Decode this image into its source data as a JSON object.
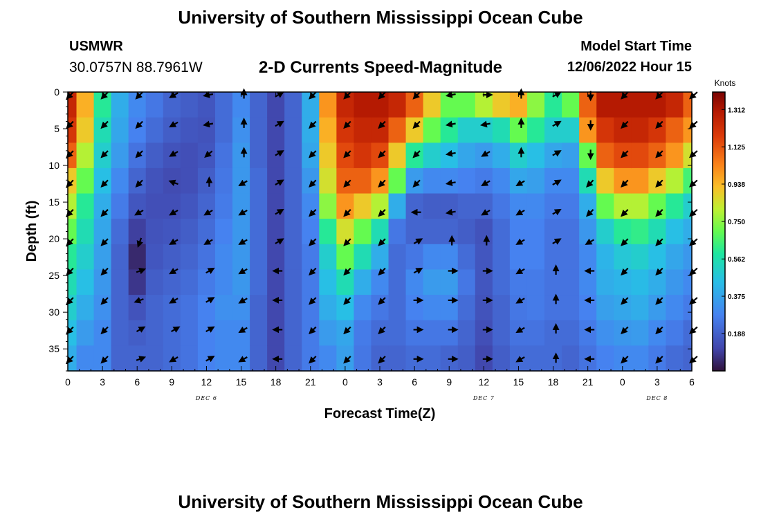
{
  "header": {
    "title": "University of Southern Mississippi Ocean Cube",
    "station": "USMWR",
    "coords": "30.0757N  88.7961W",
    "subtitle": "2-D Currents Speed-Magnitude",
    "start_label": "Model Start Time",
    "start_value": "12/06/2022 Hour 15",
    "footer_title": "University of Southern Mississippi Ocean Cube"
  },
  "chart_data": {
    "type": "heatmap",
    "title": "2-D Currents Speed-Magnitude",
    "xlabel": "Forecast Time(Z)",
    "ylabel": "Depth (ft)",
    "x_ticks": [
      "0",
      "3",
      "6",
      "9",
      "12",
      "15",
      "18",
      "21",
      "0",
      "3",
      "6",
      "9",
      "12",
      "15",
      "18",
      "21",
      "0",
      "3",
      "6"
    ],
    "y_ticks": [
      "0",
      "5",
      "10",
      "15",
      "20",
      "25",
      "30",
      "35"
    ],
    "y_range": [
      0,
      38
    ],
    "day_labels": [
      {
        "label": "DEC 6",
        "hour": 12
      },
      {
        "label": "DEC 7",
        "hour": 36
      },
      {
        "label": "DEC 8",
        "hour": 51
      }
    ],
    "colorbar": {
      "unit": "Knots",
      "ticks": [
        "1.312",
        "1.125",
        "0.938",
        "0.750",
        "0.562",
        "0.375",
        "0.188"
      ],
      "range": [
        0,
        1.4
      ]
    },
    "columns": [
      {
        "hour": 0,
        "speed": [
          1.25,
          1.2,
          1.1,
          0.9,
          0.8,
          0.7,
          0.6,
          0.55,
          0.5,
          0.45,
          0.4
        ]
      },
      {
        "hour": 1.5,
        "speed": [
          0.95,
          0.9,
          0.8,
          0.7,
          0.6,
          0.55,
          0.5,
          0.45,
          0.4,
          0.35,
          0.3
        ]
      },
      {
        "hour": 3,
        "speed": [
          0.6,
          0.55,
          0.5,
          0.45,
          0.4,
          0.38,
          0.36,
          0.34,
          0.32,
          0.3,
          0.3
        ]
      },
      {
        "hour": 4.5,
        "speed": [
          0.4,
          0.38,
          0.35,
          0.3,
          0.26,
          0.22,
          0.2,
          0.2,
          0.2,
          0.2,
          0.2
        ]
      },
      {
        "hour": 6,
        "speed": [
          0.3,
          0.28,
          0.24,
          0.2,
          0.16,
          0.1,
          0.05,
          0.08,
          0.15,
          0.18,
          0.2
        ]
      },
      {
        "hour": 7.5,
        "speed": [
          0.25,
          0.22,
          0.18,
          0.15,
          0.14,
          0.15,
          0.16,
          0.18,
          0.2,
          0.2,
          0.2
        ]
      },
      {
        "hour": 9,
        "speed": [
          0.2,
          0.18,
          0.15,
          0.13,
          0.14,
          0.16,
          0.18,
          0.2,
          0.22,
          0.22,
          0.22
        ]
      },
      {
        "hour": 10.5,
        "speed": [
          0.18,
          0.16,
          0.14,
          0.14,
          0.16,
          0.18,
          0.2,
          0.22,
          0.24,
          0.24,
          0.24
        ]
      },
      {
        "hour": 12,
        "speed": [
          0.16,
          0.15,
          0.16,
          0.18,
          0.2,
          0.22,
          0.24,
          0.26,
          0.28,
          0.28,
          0.28
        ]
      },
      {
        "hour": 13.5,
        "speed": [
          0.22,
          0.22,
          0.24,
          0.25,
          0.26,
          0.28,
          0.3,
          0.3,
          0.32,
          0.3,
          0.3
        ]
      },
      {
        "hour": 15,
        "speed": [
          0.3,
          0.32,
          0.34,
          0.34,
          0.34,
          0.34,
          0.34,
          0.34,
          0.32,
          0.3,
          0.3
        ]
      },
      {
        "hour": 16.5,
        "speed": [
          0.2,
          0.2,
          0.2,
          0.22,
          0.22,
          0.22,
          0.22,
          0.22,
          0.2,
          0.2,
          0.2
        ]
      },
      {
        "hour": 18,
        "speed": [
          0.12,
          0.12,
          0.12,
          0.12,
          0.12,
          0.12,
          0.12,
          0.12,
          0.12,
          0.12,
          0.12
        ]
      },
      {
        "hour": 19.5,
        "speed": [
          0.2,
          0.2,
          0.2,
          0.2,
          0.2,
          0.2,
          0.2,
          0.2,
          0.2,
          0.2,
          0.2
        ]
      },
      {
        "hour": 21,
        "speed": [
          0.4,
          0.4,
          0.38,
          0.34,
          0.3,
          0.28,
          0.26,
          0.26,
          0.26,
          0.26,
          0.26
        ]
      },
      {
        "hour": 22.5,
        "speed": [
          1.0,
          0.95,
          0.9,
          0.85,
          0.75,
          0.6,
          0.5,
          0.45,
          0.4,
          0.35,
          0.3
        ]
      },
      {
        "hour": 24,
        "speed": [
          1.25,
          1.2,
          1.15,
          1.1,
          1.0,
          0.85,
          0.7,
          0.55,
          0.45,
          0.38,
          0.36
        ]
      },
      {
        "hour": 25.5,
        "speed": [
          1.3,
          1.25,
          1.2,
          1.1,
          0.9,
          0.7,
          0.55,
          0.4,
          0.3,
          0.26,
          0.25
        ]
      },
      {
        "hour": 27,
        "speed": [
          1.3,
          1.25,
          1.15,
          1.0,
          0.8,
          0.55,
          0.4,
          0.3,
          0.25,
          0.22,
          0.2
        ]
      },
      {
        "hour": 28.5,
        "speed": [
          1.25,
          1.1,
          0.9,
          0.7,
          0.4,
          0.25,
          0.22,
          0.22,
          0.22,
          0.22,
          0.2
        ]
      },
      {
        "hour": 30,
        "speed": [
          1.1,
          0.9,
          0.6,
          0.35,
          0.2,
          0.2,
          0.25,
          0.3,
          0.28,
          0.25,
          0.22
        ]
      },
      {
        "hour": 31.5,
        "speed": [
          0.9,
          0.7,
          0.5,
          0.3,
          0.18,
          0.2,
          0.3,
          0.35,
          0.3,
          0.25,
          0.22
        ]
      },
      {
        "hour": 33,
        "speed": [
          0.7,
          0.6,
          0.45,
          0.3,
          0.18,
          0.2,
          0.3,
          0.35,
          0.3,
          0.25,
          0.2
        ]
      },
      {
        "hour": 34.5,
        "speed": [
          0.7,
          0.5,
          0.38,
          0.28,
          0.2,
          0.18,
          0.22,
          0.25,
          0.22,
          0.2,
          0.18
        ]
      },
      {
        "hour": 36,
        "speed": [
          0.8,
          0.5,
          0.35,
          0.26,
          0.2,
          0.15,
          0.16,
          0.16,
          0.15,
          0.14,
          0.12
        ]
      },
      {
        "hour": 37.5,
        "speed": [
          0.9,
          0.55,
          0.4,
          0.3,
          0.25,
          0.22,
          0.22,
          0.22,
          0.2,
          0.2,
          0.18
        ]
      },
      {
        "hour": 39,
        "speed": [
          0.95,
          0.7,
          0.5,
          0.38,
          0.3,
          0.28,
          0.28,
          0.26,
          0.25,
          0.24,
          0.22
        ]
      },
      {
        "hour": 40.5,
        "speed": [
          0.75,
          0.6,
          0.45,
          0.36,
          0.3,
          0.28,
          0.28,
          0.26,
          0.26,
          0.24,
          0.22
        ]
      },
      {
        "hour": 42,
        "speed": [
          0.6,
          0.5,
          0.38,
          0.3,
          0.26,
          0.24,
          0.24,
          0.24,
          0.24,
          0.22,
          0.22
        ]
      },
      {
        "hour": 43.5,
        "speed": [
          0.7,
          0.5,
          0.36,
          0.3,
          0.26,
          0.24,
          0.24,
          0.24,
          0.24,
          0.22,
          0.2
        ]
      },
      {
        "hour": 45,
        "speed": [
          1.1,
          1.0,
          0.7,
          0.55,
          0.4,
          0.34,
          0.3,
          0.3,
          0.28,
          0.26,
          0.24
        ]
      },
      {
        "hour": 46.5,
        "speed": [
          1.3,
          1.2,
          1.1,
          0.9,
          0.7,
          0.5,
          0.42,
          0.4,
          0.36,
          0.32,
          0.28
        ]
      },
      {
        "hour": 48,
        "speed": [
          1.3,
          1.25,
          1.15,
          1.0,
          0.8,
          0.6,
          0.48,
          0.42,
          0.38,
          0.34,
          0.3
        ]
      },
      {
        "hour": 49.5,
        "speed": [
          1.3,
          1.25,
          1.15,
          1.0,
          0.8,
          0.62,
          0.5,
          0.44,
          0.4,
          0.35,
          0.3
        ]
      },
      {
        "hour": 51,
        "speed": [
          1.3,
          1.2,
          1.1,
          0.9,
          0.7,
          0.55,
          0.45,
          0.4,
          0.35,
          0.3,
          0.26
        ]
      },
      {
        "hour": 52.5,
        "speed": [
          1.25,
          1.1,
          1.0,
          0.8,
          0.6,
          0.45,
          0.38,
          0.34,
          0.3,
          0.26,
          0.22
        ]
      },
      {
        "hour": 54,
        "speed": [
          1.1,
          1.0,
          0.85,
          0.65,
          0.5,
          0.4,
          0.34,
          0.3,
          0.26,
          0.22,
          0.2
        ]
      }
    ],
    "vector_hours": [
      0,
      3,
      6,
      9,
      12,
      15,
      18,
      21,
      24,
      27,
      30,
      33,
      36,
      39,
      42,
      45,
      48,
      51,
      54
    ],
    "vector_depths": [
      0,
      4,
      8,
      12,
      16,
      20,
      24,
      28,
      32,
      36
    ],
    "vectors": [
      [
        135,
        135,
        135,
        135,
        135,
        135,
        135,
        135,
        135,
        135
      ],
      [
        135,
        135,
        135,
        135,
        135,
        135,
        135,
        135,
        135,
        135
      ],
      [
        135,
        135,
        135,
        135,
        150,
        110,
        -20,
        160,
        -30,
        -20
      ],
      [
        150,
        150,
        150,
        -160,
        150,
        150,
        150,
        150,
        -30,
        150
      ],
      [
        170,
        170,
        140,
        -90,
        150,
        150,
        -30,
        -30,
        -30,
        -30
      ],
      [
        -90,
        -90,
        -90,
        150,
        150,
        150,
        150,
        150,
        150,
        150
      ],
      [
        -30,
        -30,
        -30,
        -30,
        -30,
        -30,
        180,
        180,
        180,
        180
      ],
      [
        135,
        135,
        135,
        135,
        135,
        135,
        135,
        135,
        135,
        135
      ],
      [
        135,
        135,
        135,
        135,
        135,
        135,
        135,
        135,
        135,
        135
      ],
      [
        135,
        135,
        135,
        135,
        135,
        135,
        135,
        135,
        135,
        135
      ],
      [
        135,
        135,
        135,
        135,
        180,
        -30,
        -30,
        0,
        0,
        0
      ],
      [
        170,
        170,
        170,
        170,
        170,
        -90,
        0,
        0,
        0,
        0
      ],
      [
        0,
        170,
        150,
        150,
        150,
        -90,
        0,
        0,
        0,
        0
      ],
      [
        -90,
        -90,
        -90,
        150,
        150,
        150,
        150,
        150,
        150,
        150
      ],
      [
        -30,
        -30,
        -30,
        -30,
        -30,
        -30,
        -90,
        -90,
        -90,
        -90
      ],
      [
        90,
        90,
        90,
        135,
        135,
        150,
        180,
        180,
        180,
        180
      ],
      [
        135,
        135,
        135,
        135,
        135,
        135,
        135,
        135,
        135,
        135
      ],
      [
        135,
        135,
        135,
        135,
        135,
        135,
        135,
        135,
        135,
        135
      ],
      [
        135,
        135,
        135,
        135,
        135,
        135,
        135,
        135,
        135,
        135
      ]
    ]
  }
}
